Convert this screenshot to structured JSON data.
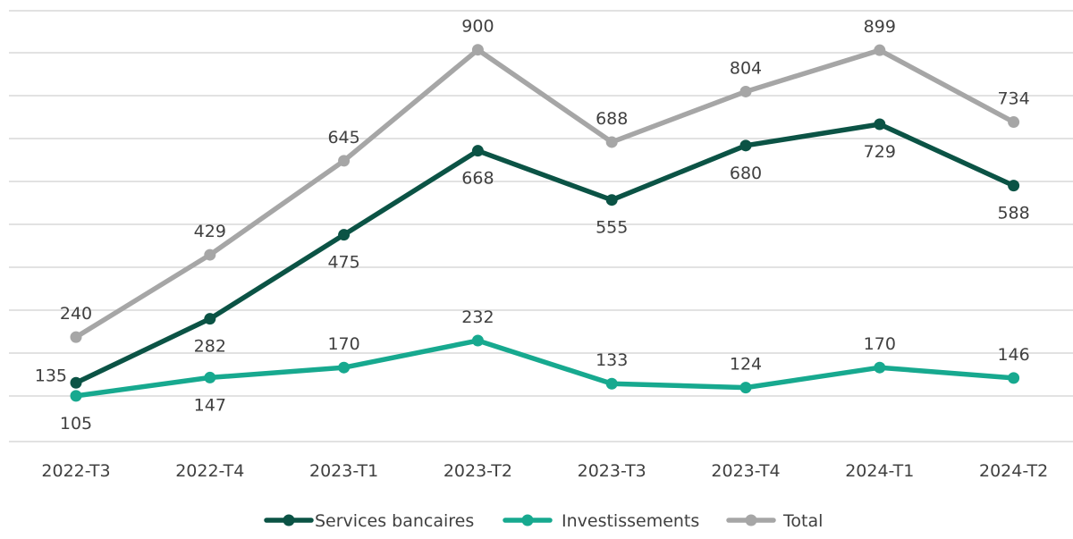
{
  "chart_data": {
    "type": "line",
    "categories": [
      "2022-T3",
      "2022-T4",
      "2023-T1",
      "2023-T2",
      "2023-T3",
      "2023-T4",
      "2024-T1",
      "2024-T2"
    ],
    "ylim": [
      0,
      920
    ],
    "grid": true,
    "legend_position": "bottom",
    "series": [
      {
        "name": "Services bancaires",
        "color": "#0b5345",
        "values": [
          135,
          282,
          475,
          668,
          555,
          680,
          729,
          588
        ],
        "label_positions": [
          "left",
          "below",
          "below",
          "below",
          "below",
          "below",
          "below",
          "below"
        ]
      },
      {
        "name": "Investissements",
        "color": "#17a98f",
        "values": [
          105,
          147,
          170,
          232,
          133,
          124,
          170,
          146
        ],
        "plot_values": [
          105,
          147,
          170,
          232,
          133,
          124,
          170,
          146
        ],
        "label_positions": [
          "below",
          "below",
          "above",
          "above",
          "above",
          "above",
          "above",
          "above"
        ]
      },
      {
        "name": "Total",
        "color": "#a6a6a6",
        "values": [
          240,
          429,
          645,
          900,
          688,
          804,
          899,
          734
        ],
        "label_positions": [
          "above",
          "above",
          "above",
          "above",
          "above",
          "above",
          "above",
          "above"
        ]
      }
    ]
  }
}
